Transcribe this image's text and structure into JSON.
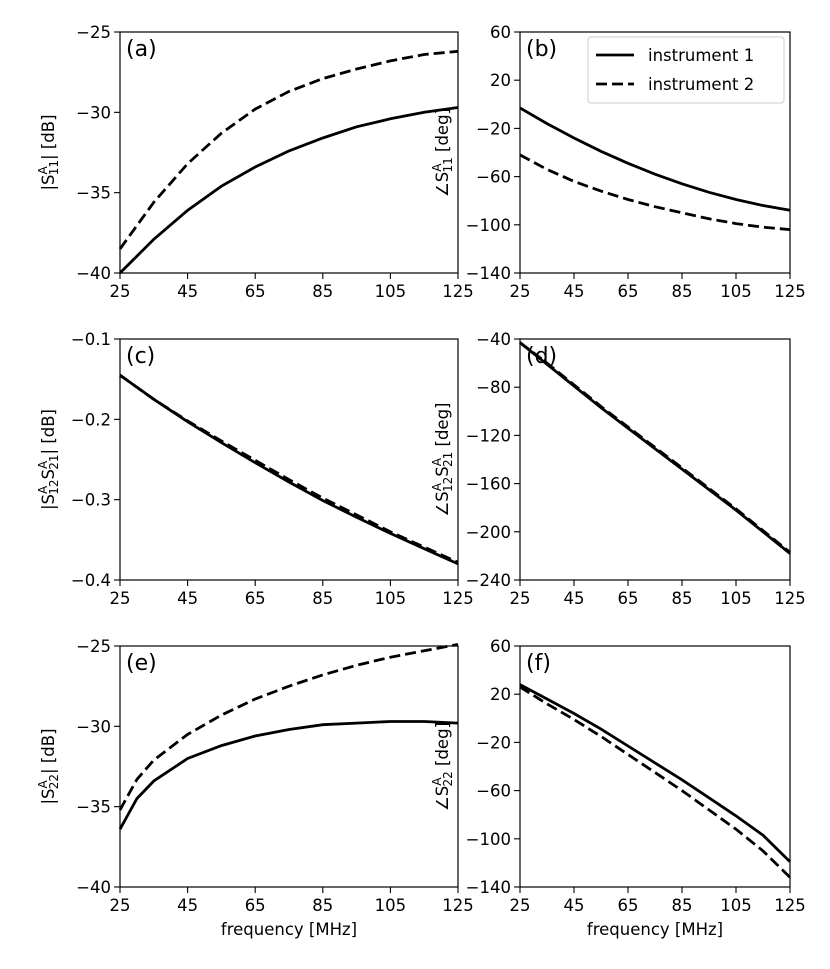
{
  "figure": {
    "legend": {
      "location": "top-right",
      "entries": [
        {
          "label": "instrument 1",
          "style": "solid"
        },
        {
          "label": "instrument 2",
          "style": "dashed"
        }
      ]
    },
    "line_color": "#000000"
  },
  "chart_data": [
    {
      "id": "a",
      "tag": "(a)",
      "type": "line",
      "ylabel_main": "|S",
      "ylabel_sup": "A",
      "ylabel_sub": "11",
      "ylabel_tail": "| [dB]",
      "xlabel": "",
      "xlim": [
        25,
        125
      ],
      "ylim": [
        -40,
        -25
      ],
      "xticks": [
        25,
        45,
        65,
        85,
        105,
        125
      ],
      "yticks": [
        -40,
        -35,
        -30,
        -25
      ],
      "ytick_labels": [
        "−40",
        "−35",
        "−30",
        "−25"
      ],
      "x": [
        25,
        35,
        45,
        55,
        65,
        75,
        85,
        95,
        105,
        115,
        125
      ],
      "series": [
        {
          "name": "instrument 1",
          "style": "solid",
          "values": [
            -40.0,
            -37.9,
            -36.1,
            -34.6,
            -33.4,
            -32.4,
            -31.6,
            -30.9,
            -30.4,
            -30.0,
            -29.7
          ]
        },
        {
          "name": "instrument 2",
          "style": "dashed",
          "values": [
            -38.5,
            -35.6,
            -33.2,
            -31.3,
            -29.8,
            -28.7,
            -27.9,
            -27.3,
            -26.8,
            -26.4,
            -26.2
          ]
        }
      ]
    },
    {
      "id": "b",
      "tag": "(b)",
      "type": "line",
      "ylabel_main": "∠S",
      "ylabel_sup": "A",
      "ylabel_sub": "11",
      "ylabel_tail": " [deg]",
      "xlabel": "",
      "xlim": [
        25,
        125
      ],
      "ylim": [
        -140,
        60
      ],
      "xticks": [
        25,
        45,
        65,
        85,
        105,
        125
      ],
      "yticks": [
        -140,
        -100,
        -60,
        -20,
        20,
        60
      ],
      "ytick_labels": [
        "−140",
        "−100",
        "−60",
        "−20",
        "20",
        "60"
      ],
      "x": [
        25,
        35,
        45,
        55,
        65,
        75,
        85,
        95,
        105,
        115,
        125
      ],
      "series": [
        {
          "name": "instrument 1",
          "style": "solid",
          "values": [
            -3,
            -16,
            -28,
            -39,
            -49,
            -58,
            -66,
            -73,
            -79,
            -84,
            -88
          ]
        },
        {
          "name": "instrument 2",
          "style": "dashed",
          "values": [
            -42,
            -54,
            -64,
            -72,
            -79,
            -85,
            -90,
            -95,
            -99,
            -102,
            -104
          ]
        }
      ]
    },
    {
      "id": "c",
      "tag": "(c)",
      "type": "line",
      "ylabel_main": "|S",
      "ylabel_sup": "A",
      "ylabel_sub": "12",
      "ylabel_main2": "S",
      "ylabel_sup2": "A",
      "ylabel_sub2": "21",
      "ylabel_tail": "| [dB]",
      "xlabel": "",
      "xlim": [
        25,
        125
      ],
      "ylim": [
        -0.4,
        -0.1
      ],
      "xticks": [
        25,
        45,
        65,
        85,
        105,
        125
      ],
      "yticks": [
        -0.4,
        -0.3,
        -0.2,
        -0.1
      ],
      "ytick_labels": [
        "−0.4",
        "−0.3",
        "−0.2",
        "−0.1"
      ],
      "x": [
        25,
        35,
        45,
        55,
        65,
        75,
        85,
        95,
        105,
        115,
        125
      ],
      "series": [
        {
          "name": "instrument 1",
          "style": "solid",
          "values": [
            -0.145,
            -0.175,
            -0.203,
            -0.229,
            -0.254,
            -0.278,
            -0.301,
            -0.322,
            -0.342,
            -0.361,
            -0.38
          ]
        },
        {
          "name": "instrument 2",
          "style": "dashed",
          "values": [
            -0.145,
            -0.175,
            -0.202,
            -0.227,
            -0.251,
            -0.275,
            -0.298,
            -0.319,
            -0.34,
            -0.359,
            -0.378
          ]
        }
      ]
    },
    {
      "id": "d",
      "tag": "(d)",
      "type": "line",
      "ylabel_main": "∠S",
      "ylabel_sup": "A",
      "ylabel_sub": "12",
      "ylabel_main2": "S",
      "ylabel_sup2": "A",
      "ylabel_sub2": "21",
      "ylabel_tail": " [deg]",
      "xlabel": "",
      "xlim": [
        25,
        125
      ],
      "ylim": [
        -240,
        -40
      ],
      "xticks": [
        25,
        45,
        65,
        85,
        105,
        125
      ],
      "yticks": [
        -240,
        -200,
        -160,
        -120,
        -80,
        -40
      ],
      "ytick_labels": [
        "−240",
        "−200",
        "−160",
        "−120",
        "−80",
        "−40"
      ],
      "x": [
        25,
        35,
        45,
        55,
        65,
        75,
        85,
        95,
        105,
        115,
        125
      ],
      "series": [
        {
          "name": "instrument 1",
          "style": "solid",
          "values": [
            -43,
            -61,
            -79,
            -97,
            -114,
            -131,
            -148,
            -165,
            -182,
            -200,
            -218
          ]
        },
        {
          "name": "instrument 2",
          "style": "dashed",
          "values": [
            -43,
            -60,
            -78,
            -96,
            -113,
            -130,
            -147,
            -164,
            -181,
            -199,
            -217
          ]
        }
      ]
    },
    {
      "id": "e",
      "tag": "(e)",
      "type": "line",
      "ylabel_main": "|S",
      "ylabel_sup": "A",
      "ylabel_sub": "22",
      "ylabel_tail": "| [dB]",
      "xlabel": "frequency [MHz]",
      "xlim": [
        25,
        125
      ],
      "ylim": [
        -40,
        -25
      ],
      "xticks": [
        25,
        45,
        65,
        85,
        105,
        125
      ],
      "yticks": [
        -40,
        -35,
        -30,
        -25
      ],
      "ytick_labels": [
        "−40",
        "−35",
        "−30",
        "−25"
      ],
      "x": [
        25,
        30,
        35,
        45,
        55,
        65,
        75,
        85,
        95,
        105,
        115,
        125
      ],
      "series": [
        {
          "name": "instrument 1",
          "style": "solid",
          "values": [
            -36.4,
            -34.5,
            -33.4,
            -32.0,
            -31.2,
            -30.6,
            -30.2,
            -29.9,
            -29.8,
            -29.7,
            -29.7,
            -29.8
          ]
        },
        {
          "name": "instrument 2",
          "style": "dashed",
          "values": [
            -35.2,
            -33.3,
            -32.1,
            -30.5,
            -29.3,
            -28.3,
            -27.5,
            -26.8,
            -26.2,
            -25.7,
            -25.3,
            -24.9
          ]
        }
      ]
    },
    {
      "id": "f",
      "tag": "(f)",
      "type": "line",
      "ylabel_main": "∠S",
      "ylabel_sup": "A",
      "ylabel_sub": "22",
      "ylabel_tail": " [deg]",
      "xlabel": "frequency [MHz]",
      "xlim": [
        25,
        125
      ],
      "ylim": [
        -140,
        60
      ],
      "xticks": [
        25,
        45,
        65,
        85,
        105,
        125
      ],
      "yticks": [
        -140,
        -100,
        -60,
        -20,
        20,
        60
      ],
      "ytick_labels": [
        "−140",
        "−100",
        "−60",
        "−20",
        "20",
        "60"
      ],
      "x": [
        25,
        35,
        45,
        55,
        65,
        75,
        85,
        95,
        105,
        115,
        125
      ],
      "series": [
        {
          "name": "instrument 1",
          "style": "solid",
          "values": [
            28,
            16,
            4,
            -9,
            -23,
            -37,
            -51,
            -66,
            -81,
            -97,
            -119
          ]
        },
        {
          "name": "instrument 2",
          "style": "dashed",
          "values": [
            26,
            12,
            -1,
            -15,
            -30,
            -45,
            -60,
            -76,
            -92,
            -110,
            -132
          ]
        }
      ]
    }
  ]
}
